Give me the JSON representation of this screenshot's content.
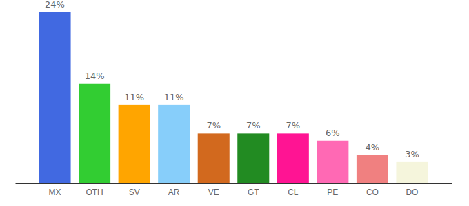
{
  "chart_data": {
    "type": "bar",
    "categories": [
      "MX",
      "OTH",
      "SV",
      "AR",
      "VE",
      "GT",
      "CL",
      "PE",
      "CO",
      "DO"
    ],
    "values": [
      24,
      14,
      11,
      11,
      7,
      7,
      7,
      6,
      4,
      3
    ],
    "value_labels": [
      "24%",
      "14%",
      "11%",
      "11%",
      "7%",
      "7%",
      "7%",
      "6%",
      "4%",
      "3%"
    ],
    "colors": [
      "#4169e1",
      "#32cd32",
      "#ffa500",
      "#87cefa",
      "#d2691e",
      "#228b22",
      "#ff1493",
      "#ff69b4",
      "#f08080",
      "#f5f5dc"
    ],
    "ylim": [
      0,
      24
    ],
    "data_labels": true,
    "tick_labels": "x"
  }
}
